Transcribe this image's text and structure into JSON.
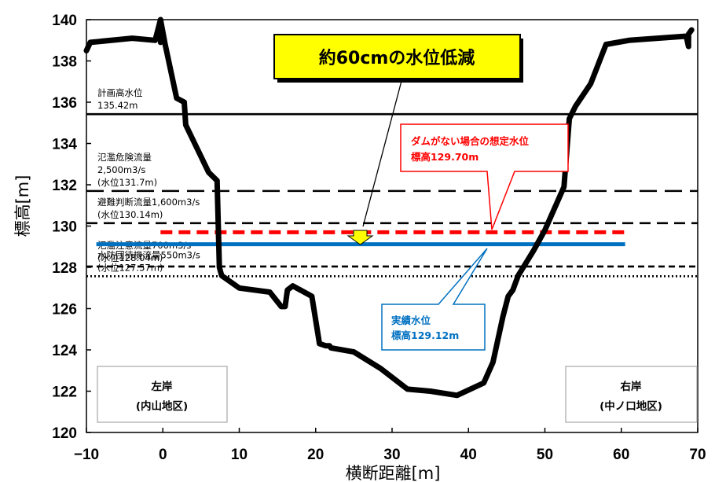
{
  "chart_data": {
    "type": "line",
    "xlabel": "横断距離[m]",
    "ylabel": "標高[m]",
    "xlim": [
      -10,
      70
    ],
    "ylim": [
      120,
      140
    ],
    "xticks": [
      "−10",
      "0",
      "10",
      "20",
      "30",
      "40",
      "50",
      "60",
      "70"
    ],
    "yticks": [
      "120",
      "122",
      "124",
      "126",
      "128",
      "130",
      "132",
      "134",
      "136",
      "138",
      "140"
    ],
    "grid": false,
    "cross_section": {
      "x": [
        -10,
        -9.5,
        -4,
        -1,
        -0.3,
        -0.3,
        -0.3,
        0.3,
        1.8,
        2.8,
        3,
        6,
        7.1,
        7.4,
        7.7,
        10,
        14,
        15.5,
        16,
        16.3,
        17,
        19.5,
        20.5,
        21.3,
        21.8,
        22,
        25,
        28.5,
        32,
        35,
        38.5,
        42,
        43.2,
        44.5,
        45.2,
        45.8,
        46.5,
        47.5,
        48.5,
        50,
        52.5,
        53.2,
        54,
        56,
        58,
        61,
        68.5,
        68.8,
        68.8,
        69.2
      ],
      "y": [
        138.5,
        138.9,
        139.1,
        139,
        140,
        138.9,
        140,
        138.8,
        136.2,
        136,
        134.9,
        132.6,
        132.2,
        128,
        127.6,
        127,
        126.8,
        126.1,
        126.1,
        126.9,
        127.1,
        126.6,
        124.3,
        124.2,
        124.2,
        124.1,
        123.9,
        123.1,
        122.1,
        122,
        121.8,
        122.4,
        123.4,
        125.6,
        126.6,
        126.9,
        127.6,
        128.2,
        128.8,
        129.8,
        131.9,
        135.2,
        135.8,
        136.9,
        138.8,
        139,
        139.2,
        138.7,
        139.3,
        139.5
      ],
      "color": "#000000"
    },
    "series": [
      {
        "x": [
          -0.3,
          60.5
        ],
        "y": [
          129.7,
          129.7
        ],
        "color": "#ff0000",
        "dash": "dashed"
      },
      {
        "x": [
          -8.7,
          60.5
        ],
        "y": [
          129.12,
          129.12
        ],
        "color": "#0070c0",
        "dash": "solid"
      }
    ],
    "reference_levels": [
      {
        "label_lines": [
          "計画高水位",
          "135.42m"
        ],
        "y": 135.42,
        "style": "solid"
      },
      {
        "label_lines": [
          "氾濫危険流量",
          "2,500m3/s",
          "(水位131.7m)"
        ],
        "y": 131.7,
        "style": "longdash"
      },
      {
        "label_lines": [
          "避難判断流量1,600m3/s",
          "(水位130.14m)"
        ],
        "y": 130.14,
        "style": "dash"
      },
      {
        "label_lines": [
          "氾濫注意流量700m3/s",
          "(水位128.04m)"
        ],
        "y": 128.04,
        "style": "shortdash"
      },
      {
        "label_lines": [
          "水防団待機流量550m3/s",
          "(水位127.57m)"
        ],
        "y": 127.57,
        "style": "dotted"
      }
    ],
    "annotations": {
      "headline": "約60cmの水位低減",
      "no_dam": [
        "ダムがない場合の想定水位",
        "標高129.70m"
      ],
      "actual": [
        "実績水位",
        "標高129.12m"
      ],
      "left_bank": [
        "左岸",
        "(内山地区)"
      ],
      "right_bank": [
        "右岸",
        "(中ノ口地区)"
      ]
    }
  }
}
